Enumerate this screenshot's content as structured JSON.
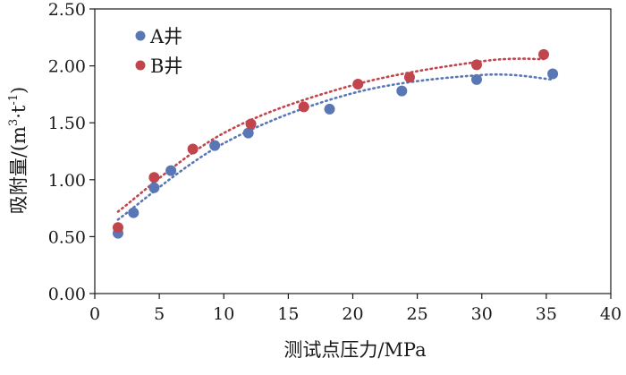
{
  "chart_data": {
    "type": "scatter",
    "xlabel": "测试点压力/MPa",
    "ylabel_main": "吸附量/(m",
    "ylabel_sup1": "3",
    "ylabel_mid": "·t",
    "ylabel_sup2": "-1",
    "ylabel_end": ")",
    "xlim": [
      0,
      40
    ],
    "ylim": [
      0,
      2.5
    ],
    "xticks": [
      0,
      5,
      10,
      15,
      20,
      25,
      30,
      35,
      40
    ],
    "xtick_labels": [
      "0",
      "5",
      "10",
      "15",
      "20",
      "25",
      "30",
      "35",
      "40"
    ],
    "yticks": [
      0,
      0.5,
      1,
      1.5,
      2,
      2.5
    ],
    "ytick_labels": [
      "0.00",
      "0.50",
      "1.00",
      "1.50",
      "2.00",
      "2.50"
    ],
    "grid": false,
    "legend_position": "top-left",
    "series": [
      {
        "name": "A井",
        "color": "#5a77b5",
        "points": [
          [
            1.8,
            0.53
          ],
          [
            3.0,
            0.71
          ],
          [
            4.6,
            0.93
          ],
          [
            5.9,
            1.08
          ],
          [
            9.3,
            1.3
          ],
          [
            11.9,
            1.41
          ],
          [
            18.2,
            1.62
          ],
          [
            23.8,
            1.78
          ],
          [
            29.6,
            1.88
          ],
          [
            35.5,
            1.93
          ]
        ],
        "trend": {
          "type": "polynomial",
          "x_range": [
            1.8,
            35.5
          ],
          "points": [
            [
              1.8,
              0.65
            ],
            [
              10,
              1.32
            ],
            [
              20,
              1.76
            ],
            [
              30,
              1.92
            ],
            [
              35.5,
              1.88
            ]
          ]
        }
      },
      {
        "name": "B井",
        "color": "#c1454c",
        "points": [
          [
            1.8,
            0.58
          ],
          [
            4.6,
            1.02
          ],
          [
            7.6,
            1.27
          ],
          [
            12.1,
            1.49
          ],
          [
            16.2,
            1.64
          ],
          [
            20.4,
            1.84
          ],
          [
            24.4,
            1.9
          ],
          [
            29.6,
            2.01
          ],
          [
            34.8,
            2.1
          ]
        ],
        "trend": {
          "type": "polynomial",
          "x_range": [
            1.8,
            34.8
          ],
          "points": [
            [
              1.8,
              0.72
            ],
            [
              10,
              1.41
            ],
            [
              20,
              1.83
            ],
            [
              30,
              2.04
            ],
            [
              34.8,
              2.06
            ]
          ]
        }
      }
    ]
  }
}
